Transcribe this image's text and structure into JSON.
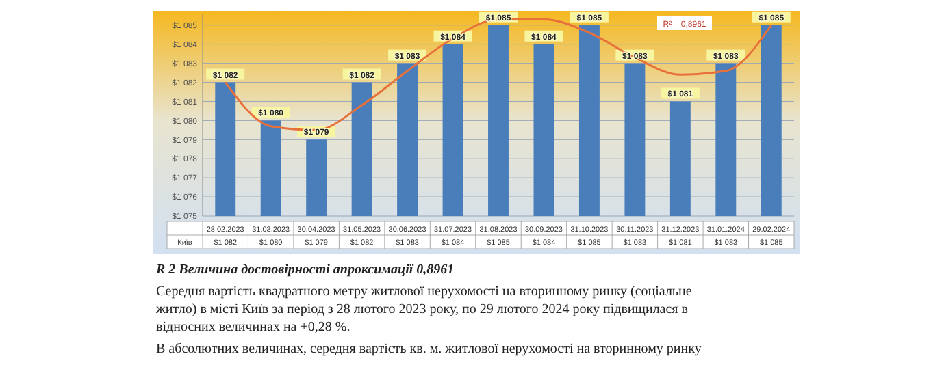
{
  "chart_data": {
    "type": "bar",
    "categories": [
      "28.02.2023",
      "31.03.2023",
      "30.04.2023",
      "31.05.2023",
      "30.06.2023",
      "31.07.2023",
      "31.08.2023",
      "30.09.2023",
      "31.10.2023",
      "30.11.2023",
      "31.12.2023",
      "31.01.2024",
      "29.02.2024"
    ],
    "series": [
      {
        "name": "Київ",
        "color": "#4a7ebb",
        "values": [
          1082,
          1080,
          1079,
          1082,
          1083,
          1084,
          1085,
          1084,
          1085,
          1083,
          1081,
          1083,
          1085
        ],
        "value_labels": [
          "$1 082",
          "$1 080",
          "$1 079",
          "$1 082",
          "$1 083",
          "$1 084",
          "$1 085",
          "$1 084",
          "$1 085",
          "$1 083",
          "$1 081",
          "$1 083",
          "$1 085"
        ]
      },
      {
        "type": "line",
        "color": "#e8703a",
        "x": [
          "28.02.2023",
          "31.03.2023",
          "30.04.2023",
          "31.05.2023",
          "30.06.2023",
          "31.07.2023",
          "31.08.2023",
          "30.09.2023",
          "31.10.2023",
          "30.11.2023",
          "31.12.2023",
          "31.01.2024",
          "29.02.2024"
        ],
        "values": [
          1082,
          1079.7,
          1079.5,
          1080.8,
          1082.6,
          1084.3,
          1085.3,
          1085.3,
          1084.6,
          1083.3,
          1082.4,
          1082.6,
          1085
        ]
      }
    ],
    "ylim": [
      1075,
      1085.6
    ],
    "yticks": [
      {
        "value": 1075,
        "label": "$1 075"
      },
      {
        "value": 1076,
        "label": "$1 076"
      },
      {
        "value": 1077,
        "label": "$1 077"
      },
      {
        "value": 1078,
        "label": "$1 078"
      },
      {
        "value": 1079,
        "label": "$1 079"
      },
      {
        "value": 1080,
        "label": "$1 080"
      },
      {
        "value": 1081,
        "label": "$1 081"
      },
      {
        "value": 1082,
        "label": "$1 082"
      },
      {
        "value": 1083,
        "label": "$1 083"
      },
      {
        "value": 1084,
        "label": "$1 084"
      },
      {
        "value": 1085,
        "label": "$1 085"
      }
    ],
    "grid": "y",
    "annotations": [
      "R² = 0,8961",
      "R 2 Величина достовірності апроксимації 0,8961",
      "Середня вартість квадратного метру житлової нерухомості на вторинному ринку (соціальне житло) в місті Київ за період з 28 лютого 2023 року, по 29 лютого 2024 року підвищилася в відносних величинах на +0,28 %.",
      "В абсолютних величинах, середня вартість кв. м. житлової нерухомості на вторинному ринку"
    ]
  }
}
